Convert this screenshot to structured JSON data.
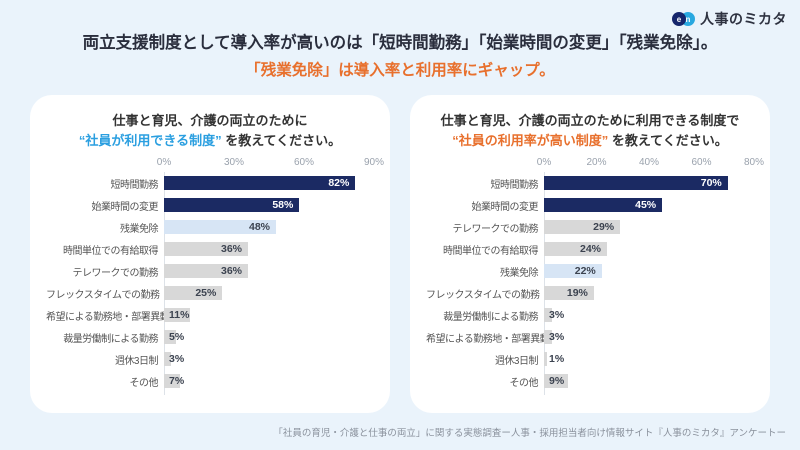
{
  "page": {
    "logo": {
      "mark_left": "e",
      "mark_right": "n",
      "text": "人事のミカタ"
    },
    "header": {
      "line1": "両立支援制度として導入率が高いのは「短時間勤務」「始業時間の変更」「残業免除」。",
      "line2": "「残業免除」は導入率と利用率にギャップ。"
    },
    "footer": "「社員の育児・介護と仕事の両立」に関する実態調査ー人事・採用担当者向け情報サイト『人事のミカタ』アンケートー"
  },
  "colors": {
    "background": "#eaf3fb",
    "card": "#ffffff",
    "navy": "#1b2a63",
    "lightblue": "#d7e5f5",
    "gray": "#d8d8d8",
    "blue_accent": "#2b9fe0",
    "orange_accent": "#e8702d",
    "value_dark": "#3c4350",
    "value_light": "#ffffff"
  },
  "chart_data": [
    {
      "type": "bar",
      "orientation": "horizontal",
      "title_line1": "仕事と育児、介護の両立のために",
      "title_highlight": "“社員が利用できる制度”",
      "title_suffix": " を教えてください。",
      "highlight_color": "#2b9fe0",
      "x_ticks": [
        "0%",
        "30%",
        "60%",
        "90%"
      ],
      "xlim": [
        0,
        90
      ],
      "grid": false,
      "categories": [
        "短時間勤務",
        "始業時間の変更",
        "残業免除",
        "時間単位での有給取得",
        "テレワークでの勤務",
        "フレックスタイムでの勤務",
        "希望による勤務地・部署異動",
        "裁量労働制による勤務",
        "週休3日制",
        "その他"
      ],
      "values": [
        82,
        58,
        48,
        36,
        36,
        25,
        11,
        5,
        3,
        7
      ],
      "value_labels": [
        "82%",
        "58%",
        "48%",
        "36%",
        "36%",
        "25%",
        "11%",
        "5%",
        "3%",
        "7%"
      ],
      "bar_styles": [
        "navy",
        "navy",
        "lightblue",
        "gray",
        "gray",
        "gray",
        "gray",
        "gray",
        "gray",
        "gray"
      ]
    },
    {
      "type": "bar",
      "orientation": "horizontal",
      "title_line1": "仕事と育児、介護の両立のために利用できる制度で",
      "title_highlight": "“社員の利用率が高い制度”",
      "title_suffix": " を教えてください。",
      "highlight_color": "#e8702d",
      "x_ticks": [
        "0%",
        "20%",
        "40%",
        "60%",
        "80%"
      ],
      "xlim": [
        0,
        80
      ],
      "grid": false,
      "categories": [
        "短時間勤務",
        "始業時間の変更",
        "テレワークでの勤務",
        "時間単位での有給取得",
        "残業免除",
        "フレックスタイムでの勤務",
        "裁量労働制による勤務",
        "希望による勤務地・部署異動",
        "週休3日制",
        "その他"
      ],
      "values": [
        70,
        45,
        29,
        24,
        22,
        19,
        3,
        3,
        1,
        9
      ],
      "value_labels": [
        "70%",
        "45%",
        "29%",
        "24%",
        "22%",
        "19%",
        "3%",
        "3%",
        "1%",
        "9%"
      ],
      "bar_styles": [
        "navy",
        "navy",
        "gray",
        "gray",
        "lightblue",
        "gray",
        "gray",
        "gray",
        "gray",
        "gray"
      ]
    }
  ]
}
